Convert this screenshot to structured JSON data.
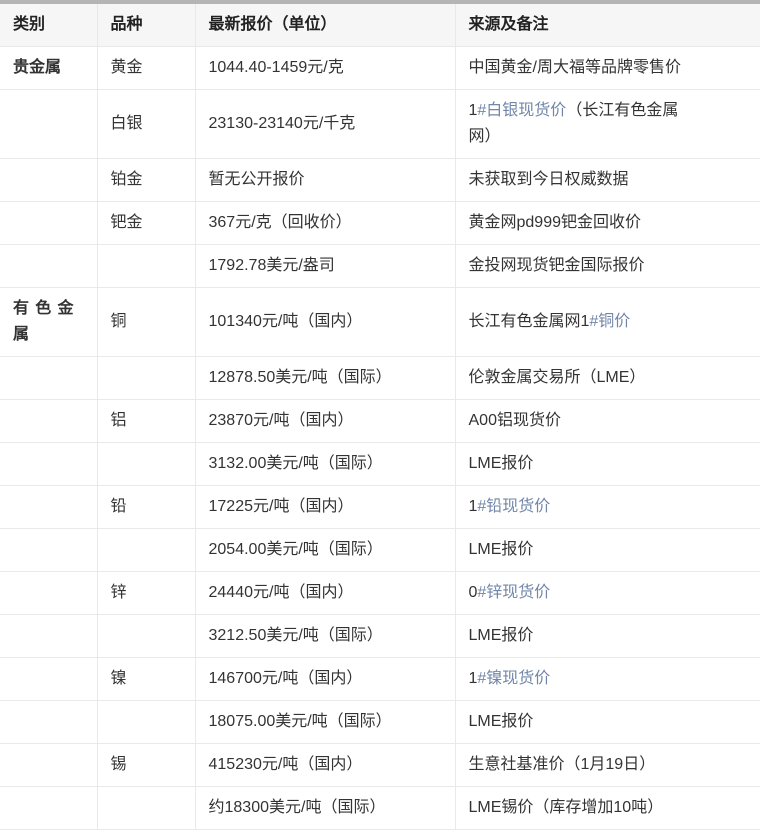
{
  "colors": {
    "link_text": "#7186a8",
    "top_bar": "#b5b5b5",
    "cell_border": "#e9e9e9",
    "header_background": "#f6f6f6",
    "body_text": "#333333"
  },
  "chart_data": {
    "type": "table",
    "columns": [
      "类别",
      "品种",
      "最新报价（单位）",
      "来源及备注"
    ],
    "rows": [
      {
        "category": "贵金属",
        "variety": "黄金",
        "price": "1044.40-1459元/克",
        "remark": [
          {
            "text": "中国黄金/周大福等品牌零售价",
            "link": false
          }
        ]
      },
      {
        "category": "",
        "variety": "白银",
        "price": "23130-23140元/千克",
        "remark": [
          {
            "text": "1",
            "link": false
          },
          {
            "text": "#白银现货价",
            "link": true
          },
          {
            "text": "（长江有色金属\n网）",
            "link": false
          }
        ]
      },
      {
        "category": "",
        "variety": "铂金",
        "price": "暂无公开报价",
        "remark": [
          {
            "text": "未获取到今日权威数据",
            "link": false
          }
        ]
      },
      {
        "category": "",
        "variety": "钯金",
        "price": "367元/克（回收价）",
        "remark": [
          {
            "text": "黄金网pd999钯金回收价",
            "link": false
          }
        ]
      },
      {
        "category": "",
        "variety": "",
        "price": "1792.78美元/盎司",
        "remark": [
          {
            "text": "金投网现货钯金国际报价",
            "link": false
          }
        ]
      },
      {
        "category": "有色金属",
        "variety": "铜",
        "price": "101340元/吨（国内）",
        "remark": [
          {
            "text": "长江有色金属网1",
            "link": false
          },
          {
            "text": "#铜价",
            "link": true
          }
        ]
      },
      {
        "category": "",
        "variety": "",
        "price": "12878.50美元/吨（国际）",
        "remark": [
          {
            "text": "伦敦金属交易所（LME）",
            "link": false
          }
        ]
      },
      {
        "category": "",
        "variety": "铝",
        "price": "23870元/吨（国内）",
        "remark": [
          {
            "text": "A00铝现货价",
            "link": false
          }
        ]
      },
      {
        "category": "",
        "variety": "",
        "price": "3132.00美元/吨（国际）",
        "remark": [
          {
            "text": "LME报价",
            "link": false
          }
        ]
      },
      {
        "category": "",
        "variety": "铅",
        "price": "17225元/吨（国内）",
        "remark": [
          {
            "text": "1",
            "link": false
          },
          {
            "text": "#铅现货价",
            "link": true
          }
        ]
      },
      {
        "category": "",
        "variety": "",
        "price": "2054.00美元/吨（国际）",
        "remark": [
          {
            "text": "LME报价",
            "link": false
          }
        ]
      },
      {
        "category": "",
        "variety": "锌",
        "price": "24440元/吨（国内）",
        "remark": [
          {
            "text": "0",
            "link": false
          },
          {
            "text": "#锌现货价",
            "link": true
          }
        ]
      },
      {
        "category": "",
        "variety": "",
        "price": "3212.50美元/吨（国际）",
        "remark": [
          {
            "text": "LME报价",
            "link": false
          }
        ]
      },
      {
        "category": "",
        "variety": "镍",
        "price": "146700元/吨（国内）",
        "remark": [
          {
            "text": "1",
            "link": false
          },
          {
            "text": "#镍现货价",
            "link": true
          }
        ]
      },
      {
        "category": "",
        "variety": "",
        "price": "18075.00美元/吨（国际）",
        "remark": [
          {
            "text": "LME报价",
            "link": false
          }
        ]
      },
      {
        "category": "",
        "variety": "锡",
        "price": "415230元/吨（国内）",
        "remark": [
          {
            "text": "生意社基准价（1月19日）",
            "link": false
          }
        ]
      },
      {
        "category": "",
        "variety": "",
        "price": "约18300美元/吨（国际）",
        "remark": [
          {
            "text": "LME锡价（库存增加10吨）",
            "link": false
          }
        ]
      }
    ]
  }
}
